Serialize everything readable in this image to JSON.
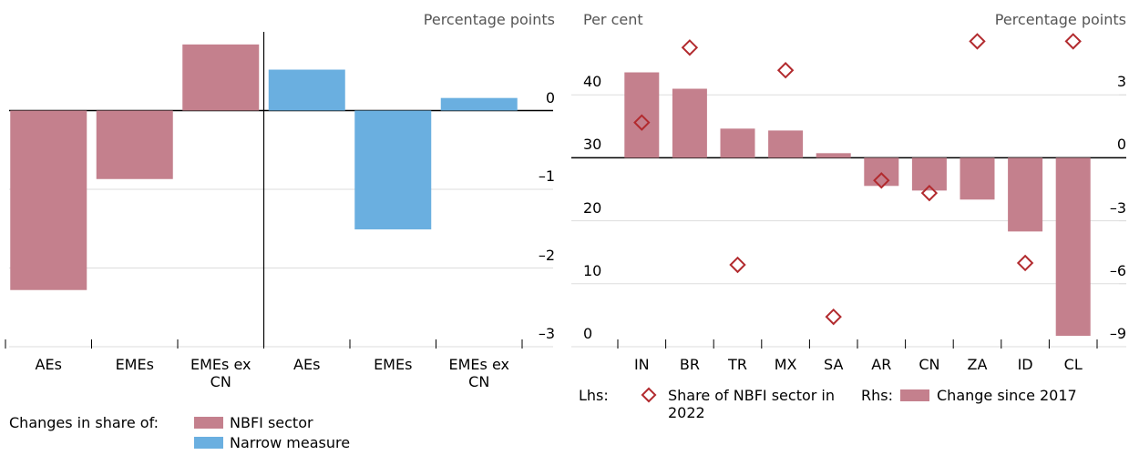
{
  "chart_data": [
    {
      "type": "bar",
      "y_label": "Percentage points",
      "categories": [
        "AEs",
        "EMEs",
        "EMEs ex CN",
        "AEs",
        "EMEs",
        "EMEs ex CN"
      ],
      "series": [
        {
          "name": "NBFI sector",
          "color": "#c4808d",
          "values": [
            -2.28,
            -0.87,
            0.84,
            null,
            null,
            null
          ]
        },
        {
          "name": "Narrow measure",
          "color": "#6aafe0",
          "values": [
            null,
            null,
            null,
            0.52,
            -1.51,
            0.16
          ]
        }
      ],
      "legend_title": "Changes in share of:",
      "ylim": [
        -3,
        1
      ],
      "yticks": [
        0,
        {
          "value": -1,
          "label": "–1"
        },
        {
          "value": -2,
          "label": "–2"
        },
        {
          "value": -3,
          "label": "–3"
        }
      ],
      "grid": true
    },
    {
      "type": "combo",
      "y_label": "Per cent",
      "y2_label": "Percentage points",
      "categories": [
        "IN",
        "BR",
        "TR",
        "MX",
        "SA",
        "AR",
        "CN",
        "ZA",
        "ID",
        "CL"
      ],
      "series": [
        {
          "name": "Share of NBFI sector in 2022",
          "legend_prefix": "Lhs:",
          "type": "scatter",
          "axis": "y",
          "color": "#b22a2e",
          "values": [
            35.6,
            47.5,
            13.0,
            43.9,
            4.75,
            26.4,
            24.4,
            48.5,
            13.3,
            48.5
          ]
        },
        {
          "name": "Change since 2017",
          "legend_prefix": "Rhs:",
          "type": "bar",
          "axis": "y2",
          "color": "#c4808d",
          "values": [
            4.07,
            3.29,
            1.39,
            1.3,
            0.22,
            -1.34,
            -1.56,
            -1.99,
            -3.51,
            -8.48
          ]
        }
      ],
      "ylim": [
        0,
        50
      ],
      "yticks": [
        0,
        10,
        20,
        30,
        40
      ],
      "y2lim": [
        -9,
        6
      ],
      "y2ticks": [
        3,
        0,
        {
          "value": -3,
          "label": "–3"
        },
        {
          "value": -6,
          "label": "–6"
        },
        {
          "value": -9,
          "label": "–9"
        }
      ],
      "grid": true
    }
  ]
}
